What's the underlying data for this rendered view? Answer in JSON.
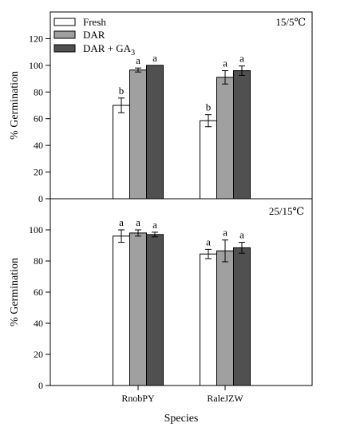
{
  "chart_data": [
    {
      "type": "bar",
      "condition": "15/5℃",
      "categories": [
        "RnobPY",
        "RaleJZW"
      ],
      "series": [
        {
          "name": "Fresh",
          "color": "#ffffff",
          "values": [
            70,
            58.5
          ],
          "errors": [
            5.5,
            4.5
          ],
          "letters": [
            "b",
            "b"
          ]
        },
        {
          "name": "DAR",
          "color": "#a0a0a0",
          "values": [
            96.5,
            91
          ],
          "errors": [
            1.5,
            5
          ],
          "letters": [
            "a",
            "a"
          ]
        },
        {
          "name": "DAR + GA3",
          "color": "#505050",
          "values": [
            100,
            96
          ],
          "errors": [
            0,
            3.5
          ],
          "letters": [
            "a",
            "a"
          ]
        }
      ],
      "ylabel": "% Germination",
      "ylim": [
        0,
        140
      ],
      "yticks": [
        0,
        20,
        40,
        60,
        80,
        100,
        120
      ],
      "legend": "top-left"
    },
    {
      "type": "bar",
      "condition": "25/15℃",
      "categories": [
        "RnobPY",
        "RaleJZW"
      ],
      "series": [
        {
          "name": "Fresh",
          "color": "#ffffff",
          "values": [
            96,
            84.5
          ],
          "errors": [
            4,
            3
          ],
          "letters": [
            "a",
            "a"
          ]
        },
        {
          "name": "DAR",
          "color": "#a0a0a0",
          "values": [
            98,
            86.5
          ],
          "errors": [
            2,
            7
          ],
          "letters": [
            "a",
            "a"
          ]
        },
        {
          "name": "DAR + GA3",
          "color": "#505050",
          "values": [
            97,
            88.5
          ],
          "errors": [
            1.5,
            3.5
          ],
          "letters": [
            "a",
            "a"
          ]
        }
      ],
      "ylabel": "% Germination",
      "ylim": [
        0,
        120
      ],
      "yticks": [
        0,
        20,
        40,
        60,
        80,
        100
      ],
      "xlabel": "Species"
    }
  ]
}
